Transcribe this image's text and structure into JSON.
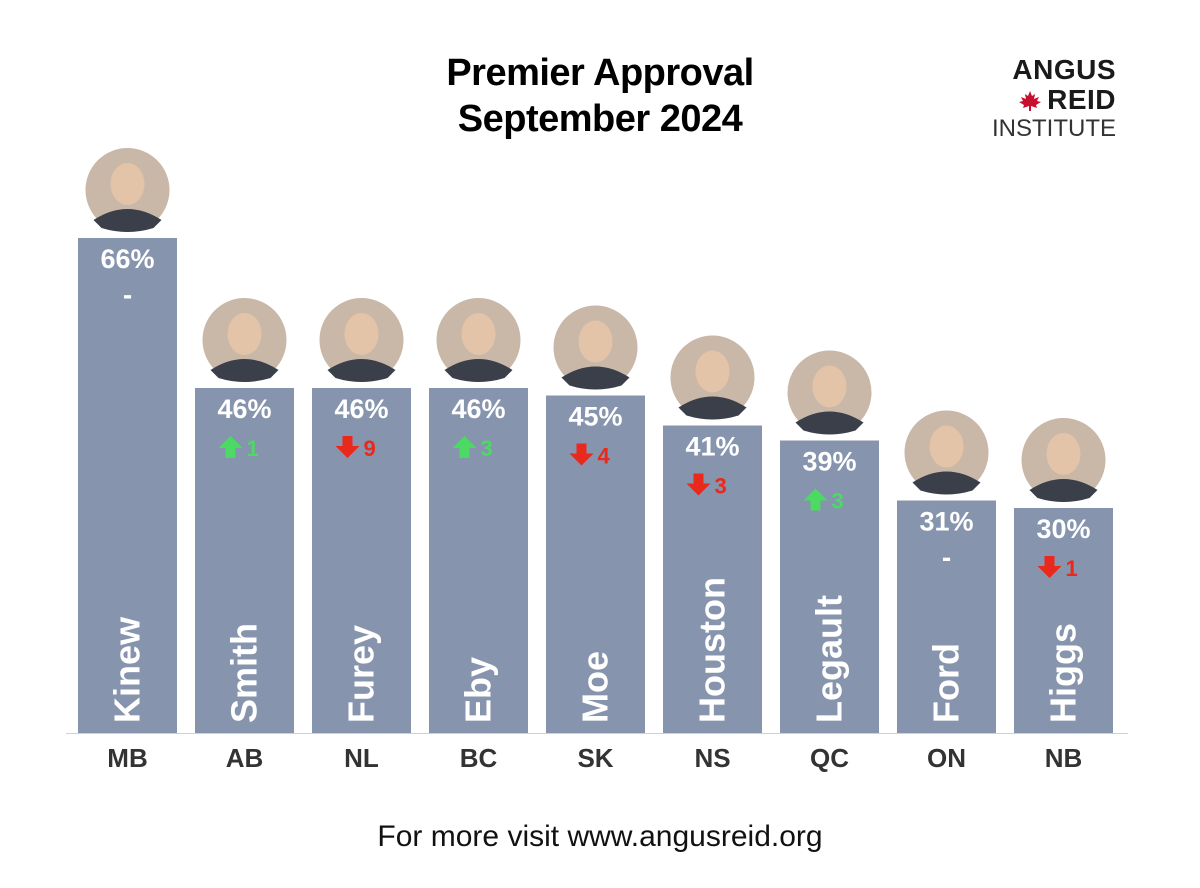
{
  "title_lines": [
    "Premier Approval",
    "September 2024"
  ],
  "logo": {
    "line1": "ANGUS",
    "line2": "REID",
    "line3": "INSTITUTE",
    "leaf_color": "#c8102e"
  },
  "footer": "For more visit www.angusreid.org",
  "colors": {
    "bar": "#8794ad",
    "up": "#4cd964",
    "down": "#e8291c",
    "label": "#ffffff",
    "axis_text": "#333333"
  },
  "chart_data": {
    "type": "bar",
    "title": "Premier Approval September 2024",
    "unit": "%",
    "categories": [
      "MB",
      "AB",
      "NL",
      "BC",
      "SK",
      "NS",
      "QC",
      "ON",
      "NB"
    ],
    "names": [
      "Kinew",
      "Smith",
      "Furey",
      "Eby",
      "Moe",
      "Houston",
      "Legault",
      "Ford",
      "Higgs"
    ],
    "values": [
      66,
      46,
      46,
      46,
      45,
      41,
      39,
      31,
      30
    ],
    "value_labels": [
      "66%",
      "46%",
      "46%",
      "46%",
      "45%",
      "41%",
      "39%",
      "31%",
      "30%"
    ],
    "change_direction": [
      "none",
      "up",
      "down",
      "up",
      "down",
      "down",
      "up",
      "none",
      "down"
    ],
    "change_values": [
      "-",
      "1",
      "9",
      "3",
      "4",
      "3",
      "3",
      "-",
      "1"
    ],
    "xlabel": "",
    "ylabel": "",
    "grid": false,
    "legend": false
  }
}
